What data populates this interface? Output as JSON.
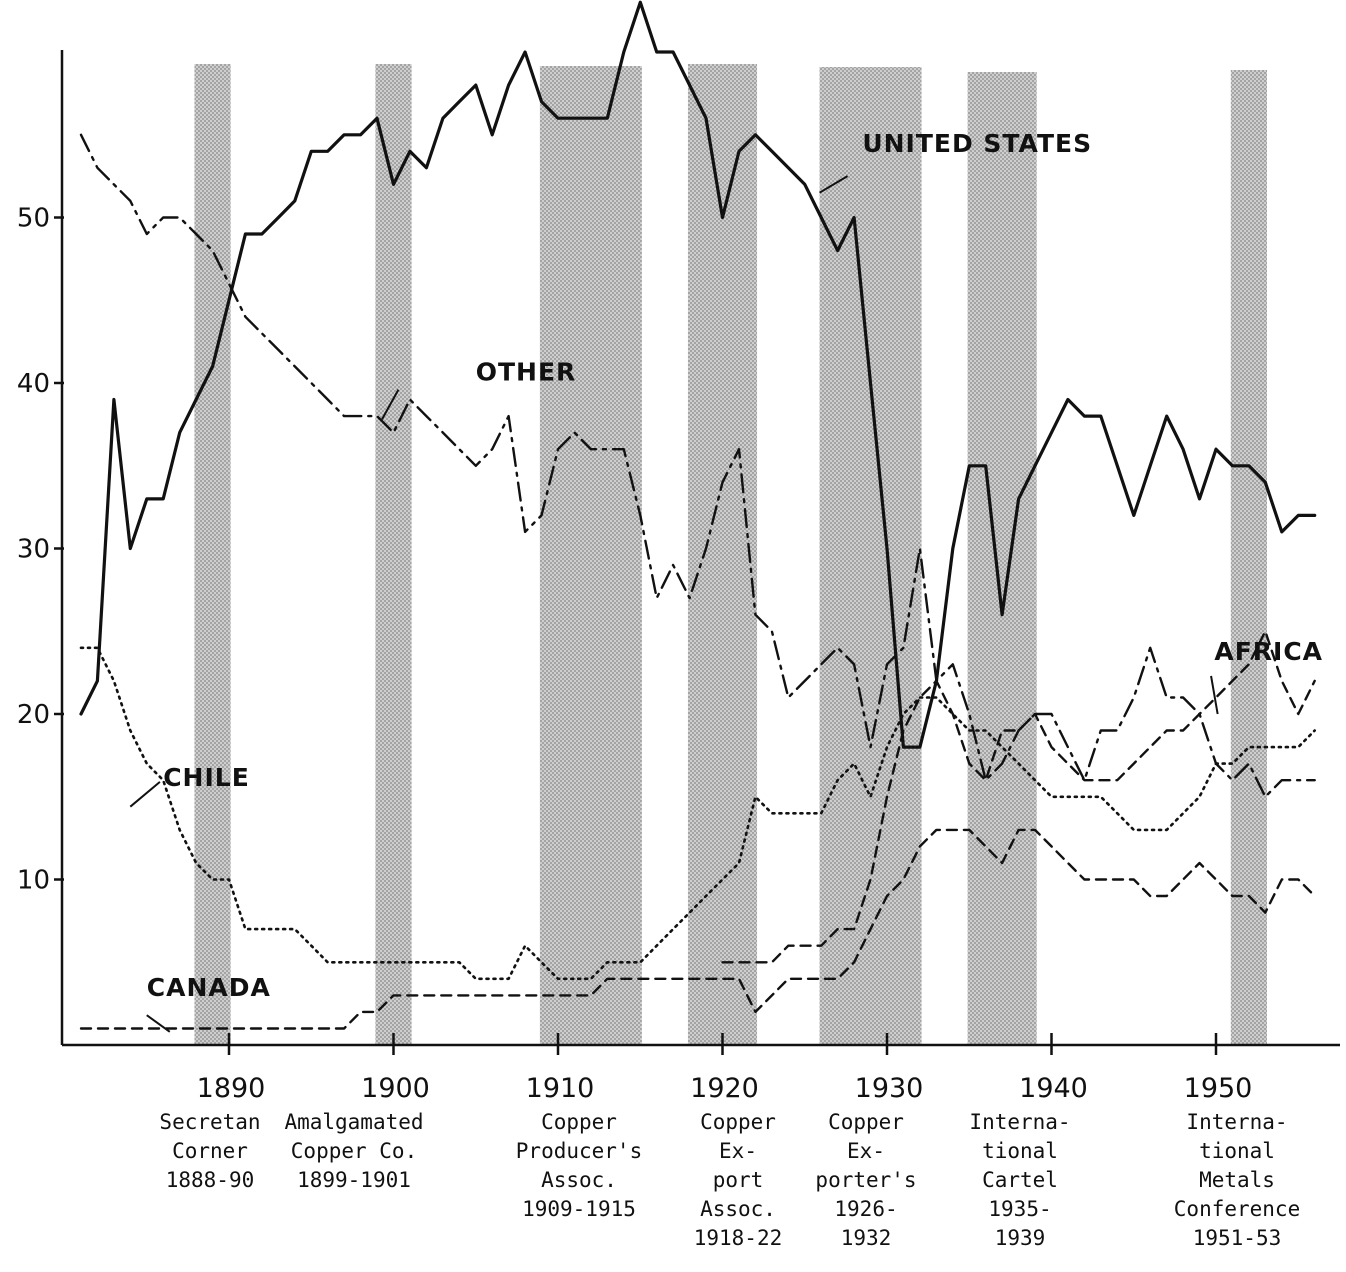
{
  "chart_data": {
    "type": "line",
    "title": "",
    "xlabel": "",
    "ylabel": "",
    "xlim": [
      1881,
      1956
    ],
    "ylim": [
      0,
      63
    ],
    "y_ticks": [
      10,
      20,
      30,
      40,
      50
    ],
    "y_tick_labels": [
      "10",
      "20",
      "30",
      "40",
      "50"
    ],
    "x_ticks": [
      1890,
      1900,
      1910,
      1920,
      1930,
      1940,
      1950
    ],
    "x_tick_labels": [
      "1890",
      "1900",
      "1910",
      "1920",
      "1930",
      "1940",
      "1950"
    ],
    "grid": false,
    "legend": "none (series labeled directly on plot)",
    "shaded_periods": [
      {
        "start": 1888,
        "end": 1890,
        "lines": [
          "Secretan",
          "Corner",
          "1888-90"
        ]
      },
      {
        "start": 1899,
        "end": 1901,
        "lines": [
          "Amalgamated",
          "Copper Co.",
          "1899-1901"
        ]
      },
      {
        "start": 1909,
        "end": 1915,
        "lines": [
          "Copper",
          "Producer's",
          "Assoc.",
          "1909-1915"
        ]
      },
      {
        "start": 1918,
        "end": 1922,
        "lines": [
          "Copper",
          "Ex-",
          "port",
          "Assoc.",
          "1918-22"
        ]
      },
      {
        "start": 1926,
        "end": 1932,
        "lines": [
          "Copper",
          "Ex-",
          "porter's",
          "1926-",
          "1932"
        ]
      },
      {
        "start": 1935,
        "end": 1939,
        "lines": [
          "Interna-",
          "tional",
          "Cartel",
          "1935-",
          "1939"
        ]
      },
      {
        "start": 1951,
        "end": 1953,
        "lines": [
          "Interna-",
          "tional",
          "Metals",
          "Conference",
          "1951-53"
        ]
      }
    ],
    "series": [
      {
        "name": "UNITED STATES",
        "style": "solid",
        "label_at": [
          1928.5,
          54.5
        ],
        "x": [
          1881,
          1882,
          1883,
          1884,
          1885,
          1886,
          1887,
          1888,
          1889,
          1890,
          1891,
          1892,
          1893,
          1894,
          1895,
          1896,
          1897,
          1898,
          1899,
          1900,
          1901,
          1902,
          1903,
          1904,
          1905,
          1906,
          1907,
          1908,
          1909,
          1910,
          1911,
          1912,
          1913,
          1914,
          1915,
          1916,
          1917,
          1918,
          1919,
          1920,
          1921,
          1922,
          1923,
          1924,
          1925,
          1926,
          1927,
          1928,
          1929,
          1930,
          1931,
          1932,
          1933,
          1934,
          1935,
          1936,
          1937,
          1938,
          1939,
          1940,
          1941,
          1942,
          1943,
          1944,
          1945,
          1946,
          1947,
          1948,
          1949,
          1950,
          1951,
          1952,
          1953,
          1954,
          1955,
          1956
        ],
        "values": [
          20,
          22,
          39,
          30,
          33,
          33,
          37,
          39,
          41,
          45,
          49,
          49,
          50,
          51,
          54,
          54,
          55,
          55,
          56,
          52,
          54,
          53,
          56,
          57,
          58,
          55,
          58,
          60,
          57,
          56,
          56,
          56,
          56,
          60,
          63,
          60,
          60,
          58,
          56,
          50,
          54,
          55,
          54,
          53,
          52,
          50,
          48,
          50,
          40,
          30,
          18,
          18,
          22,
          30,
          35,
          35,
          26,
          33,
          35,
          37,
          39,
          38,
          38,
          35,
          32,
          35,
          38,
          36,
          33,
          36,
          35,
          35,
          34,
          31,
          32,
          32
        ]
      },
      {
        "name": "OTHER",
        "style": "dashdot",
        "label_at": [
          1905,
          40.7
        ],
        "x": [
          1881,
          1882,
          1883,
          1884,
          1885,
          1886,
          1887,
          1888,
          1889,
          1890,
          1891,
          1892,
          1893,
          1894,
          1895,
          1896,
          1897,
          1898,
          1899,
          1900,
          1901,
          1902,
          1903,
          1904,
          1905,
          1906,
          1907,
          1908,
          1909,
          1910,
          1911,
          1912,
          1913,
          1914,
          1915,
          1916,
          1917,
          1918,
          1919,
          1920,
          1921,
          1922,
          1923,
          1924,
          1925,
          1926,
          1927,
          1928,
          1929,
          1930,
          1931,
          1932,
          1933,
          1934,
          1935,
          1936,
          1937,
          1938,
          1939,
          1940,
          1941,
          1942,
          1943,
          1944,
          1945,
          1946,
          1947,
          1948,
          1949,
          1950,
          1951,
          1952,
          1953,
          1954,
          1955,
          1956
        ],
        "values": [
          55,
          53,
          52,
          51,
          49,
          50,
          50,
          49,
          48,
          46,
          44,
          43,
          42,
          41,
          40,
          39,
          38,
          38,
          38,
          37,
          39,
          38,
          37,
          36,
          35,
          36,
          38,
          31,
          32,
          36,
          37,
          36,
          36,
          36,
          32,
          27,
          29,
          27,
          30,
          34,
          36,
          26,
          25,
          21,
          22,
          23,
          24,
          23,
          18,
          23,
          24,
          30,
          22,
          23,
          20,
          16,
          17,
          19,
          20,
          20,
          18,
          16,
          19,
          19,
          21,
          24,
          21,
          21,
          20,
          17,
          16,
          17,
          15,
          16,
          16,
          16
        ]
      },
      {
        "name": "CHILE",
        "style": "dotted",
        "label_at": [
          1886,
          16.2
        ],
        "x": [
          1881,
          1882,
          1883,
          1884,
          1885,
          1886,
          1887,
          1888,
          1889,
          1890,
          1891,
          1892,
          1893,
          1894,
          1895,
          1896,
          1897,
          1898,
          1899,
          1900,
          1901,
          1902,
          1903,
          1904,
          1905,
          1906,
          1907,
          1908,
          1909,
          1910,
          1911,
          1912,
          1913,
          1914,
          1915,
          1916,
          1917,
          1918,
          1919,
          1920,
          1921,
          1922,
          1923,
          1924,
          1925,
          1926,
          1927,
          1928,
          1929,
          1930,
          1931,
          1932,
          1933,
          1934,
          1935,
          1936,
          1937,
          1938,
          1939,
          1940,
          1941,
          1942,
          1943,
          1944,
          1945,
          1946,
          1947,
          1948,
          1949,
          1950,
          1951,
          1952,
          1953,
          1954,
          1955,
          1956
        ],
        "values": [
          24,
          24,
          22,
          19,
          17,
          16,
          13,
          11,
          10,
          10,
          7,
          7,
          7,
          7,
          6,
          5,
          5,
          5,
          5,
          5,
          5,
          5,
          5,
          5,
          4,
          4,
          4,
          6,
          5,
          4,
          4,
          4,
          5,
          5,
          5,
          6,
          7,
          8,
          9,
          10,
          11,
          15,
          14,
          14,
          14,
          14,
          16,
          17,
          15,
          18,
          20,
          21,
          21,
          20,
          19,
          19,
          18,
          17,
          16,
          15,
          15,
          15,
          15,
          14,
          13,
          13,
          13,
          14,
          15,
          17,
          17,
          18,
          18,
          18,
          18,
          19
        ]
      },
      {
        "name": "AFRICA",
        "style": "dashed",
        "label_at": [
          1949.9,
          23.8
        ],
        "x": [
          1920,
          1921,
          1922,
          1923,
          1924,
          1925,
          1926,
          1927,
          1928,
          1929,
          1930,
          1931,
          1932,
          1933,
          1934,
          1935,
          1936,
          1937,
          1938,
          1939,
          1940,
          1941,
          1942,
          1943,
          1944,
          1945,
          1946,
          1947,
          1948,
          1949,
          1950,
          1951,
          1952,
          1953,
          1954,
          1955,
          1956
        ],
        "values": [
          5,
          5,
          5,
          5,
          6,
          6,
          6,
          7,
          7,
          10,
          15,
          19,
          21,
          22,
          20,
          17,
          16,
          19,
          19,
          20,
          18,
          17,
          16,
          16,
          16,
          17,
          18,
          19,
          19,
          20,
          21,
          22,
          23,
          25,
          22,
          20,
          22
        ]
      },
      {
        "name": "CANADA",
        "style": "dashed",
        "label_at": [
          1885,
          3.5
        ],
        "x": [
          1881,
          1882,
          1883,
          1884,
          1885,
          1886,
          1887,
          1888,
          1889,
          1890,
          1891,
          1892,
          1893,
          1894,
          1895,
          1896,
          1897,
          1898,
          1899,
          1900,
          1901,
          1902,
          1903,
          1904,
          1905,
          1906,
          1907,
          1908,
          1909,
          1910,
          1911,
          1912,
          1913,
          1914,
          1915,
          1916,
          1917,
          1918,
          1919,
          1920,
          1921,
          1922,
          1923,
          1924,
          1925,
          1926,
          1927,
          1928,
          1929,
          1930,
          1931,
          1932,
          1933,
          1934,
          1935,
          1936,
          1937,
          1938,
          1939,
          1940,
          1941,
          1942,
          1943,
          1944,
          1945,
          1946,
          1947,
          1948,
          1949,
          1950,
          1951,
          1952,
          1953,
          1954,
          1955,
          1956
        ],
        "values": [
          1,
          1,
          1,
          1,
          1,
          1,
          1,
          1,
          1,
          1,
          1,
          1,
          1,
          1,
          1,
          1,
          1,
          2,
          2,
          3,
          3,
          3,
          3,
          3,
          3,
          3,
          3,
          3,
          3,
          3,
          3,
          3,
          4,
          4,
          4,
          4,
          4,
          4,
          4,
          4,
          4,
          2,
          3,
          4,
          4,
          4,
          4,
          5,
          7,
          9,
          10,
          12,
          13,
          13,
          13,
          12,
          11,
          13,
          13,
          12,
          11,
          10,
          10,
          10,
          10,
          9,
          9,
          10,
          11,
          10,
          9,
          9,
          8,
          10,
          10,
          9
        ]
      }
    ]
  }
}
